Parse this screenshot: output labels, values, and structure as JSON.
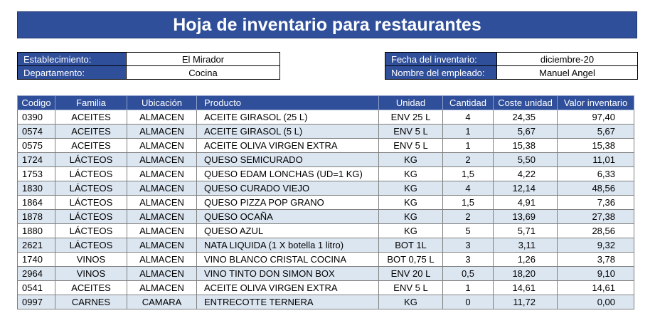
{
  "title": "Hoja de inventario para restaurantes",
  "info": {
    "establecimiento_label": "Establecimiento:",
    "establecimiento_value": "El Mirador",
    "departamento_label": "Departamento:",
    "departamento_value": "Cocina",
    "fecha_label": "Fecha del inventario:",
    "fecha_value": "diciembre-20",
    "empleado_label": "Nombre del empleado:",
    "empleado_value": "Manuel Angel"
  },
  "table": {
    "headers": [
      "Codigo",
      "Familia",
      "Ubicación",
      "Producto",
      "Unidad",
      "Cantidad",
      "Coste unidad",
      "Valor inventario"
    ],
    "rows": [
      [
        "0390",
        "ACEITES",
        "ALMACEN",
        "ACEITE GIRASOL (25 L)",
        "ENV 25 L",
        "4",
        "24,35",
        "97,40"
      ],
      [
        "0574",
        "ACEITES",
        "ALMACEN",
        "ACEITE GIRASOL (5 L)",
        "ENV 5 L",
        "1",
        "5,67",
        "5,67"
      ],
      [
        "0575",
        "ACEITES",
        "ALMACEN",
        "ACEITE OLIVA VIRGEN EXTRA",
        "ENV 5 L",
        "1",
        "15,38",
        "15,38"
      ],
      [
        "1724",
        "LÁCTEOS",
        "ALMACEN",
        "QUESO SEMICURADO",
        "KG",
        "2",
        "5,50",
        "11,01"
      ],
      [
        "1753",
        "LÁCTEOS",
        "ALMACEN",
        "QUESO EDAM LONCHAS (UD=1 KG)",
        "KG",
        "1,5",
        "4,22",
        "6,33"
      ],
      [
        "1830",
        "LÁCTEOS",
        "ALMACEN",
        "QUESO CURADO VIEJO",
        "KG",
        "4",
        "12,14",
        "48,56"
      ],
      [
        "1864",
        "LÁCTEOS",
        "ALMACEN",
        "QUESO PIZZA POP GRANO",
        "KG",
        "1,5",
        "4,91",
        "7,36"
      ],
      [
        "1878",
        "LÁCTEOS",
        "ALMACEN",
        "QUESO OCAÑA",
        "KG",
        "2",
        "13,69",
        "27,38"
      ],
      [
        "1880",
        "LÁCTEOS",
        "ALMACEN",
        "QUESO AZUL",
        "KG",
        "5",
        "5,71",
        "28,56"
      ],
      [
        "2621",
        "LÁCTEOS",
        "ALMACEN",
        "NATA LIQUIDA (1 X botella 1 litro)",
        "BOT 1L",
        "3",
        "3,11",
        "9,32"
      ],
      [
        "1740",
        "VINOS",
        "ALMACEN",
        "VINO BLANCO CRISTAL COCINA",
        "BOT 0,75 L",
        "3",
        "1,26",
        "3,78"
      ],
      [
        "2964",
        "VINOS",
        "ALMACEN",
        "VINO TINTO DON SIMON BOX",
        "ENV 20 L",
        "0,5",
        "18,20",
        "9,10"
      ],
      [
        "0541",
        "ACEITES",
        "ALMACEN",
        "ACEITE OLIVA VIRGEN EXTRA",
        "ENV 5 L",
        "1",
        "14,61",
        "14,61"
      ],
      [
        "0997",
        "CARNES",
        "CAMARA",
        "ENTRECOTTE TERNERA",
        "KG",
        "0",
        "11,72",
        "0,00"
      ]
    ]
  },
  "colors": {
    "header_blue": "#2f4f9a",
    "row_alt": "#dce6f1"
  }
}
